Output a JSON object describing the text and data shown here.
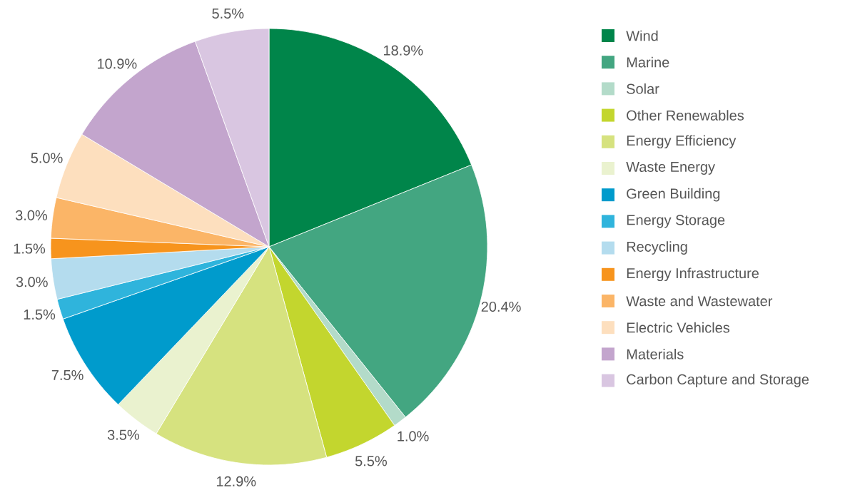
{
  "chart_data": {
    "type": "pie",
    "legend": "right",
    "categories": [
      "Wind",
      "Marine",
      "Solar",
      "Other Renewables",
      "Energy Efficiency",
      "Waste Energy",
      "Green Building",
      "Energy Storage",
      "Recycling",
      "Energy Infrastructure",
      "Waste and Wastewater",
      "Electric Vehicles",
      "Materials",
      "Carbon Capture and Storage"
    ],
    "values": [
      18.9,
      20.4,
      1.0,
      5.5,
      12.9,
      3.5,
      7.5,
      1.5,
      3.0,
      1.5,
      3.0,
      5.0,
      10.9,
      5.5
    ],
    "value_labels": [
      "18.9%",
      "20.4%",
      "1.0%",
      "5.5%",
      "12.9%",
      "3.5%",
      "7.5%",
      "1.5%",
      "3.0%",
      "1.5%",
      "3.0%",
      "5.0%",
      "10.9%",
      "5.5%"
    ],
    "colors": [
      "#00854a",
      "#43a681",
      "#b3dbc9",
      "#c3d62e",
      "#d6e27f",
      "#eaf2cf",
      "#009bcc",
      "#2fb4dc",
      "#b4dcee",
      "#f7941d",
      "#fbb567",
      "#fddfbe",
      "#c3a5cd",
      "#d9c6e1"
    ]
  }
}
